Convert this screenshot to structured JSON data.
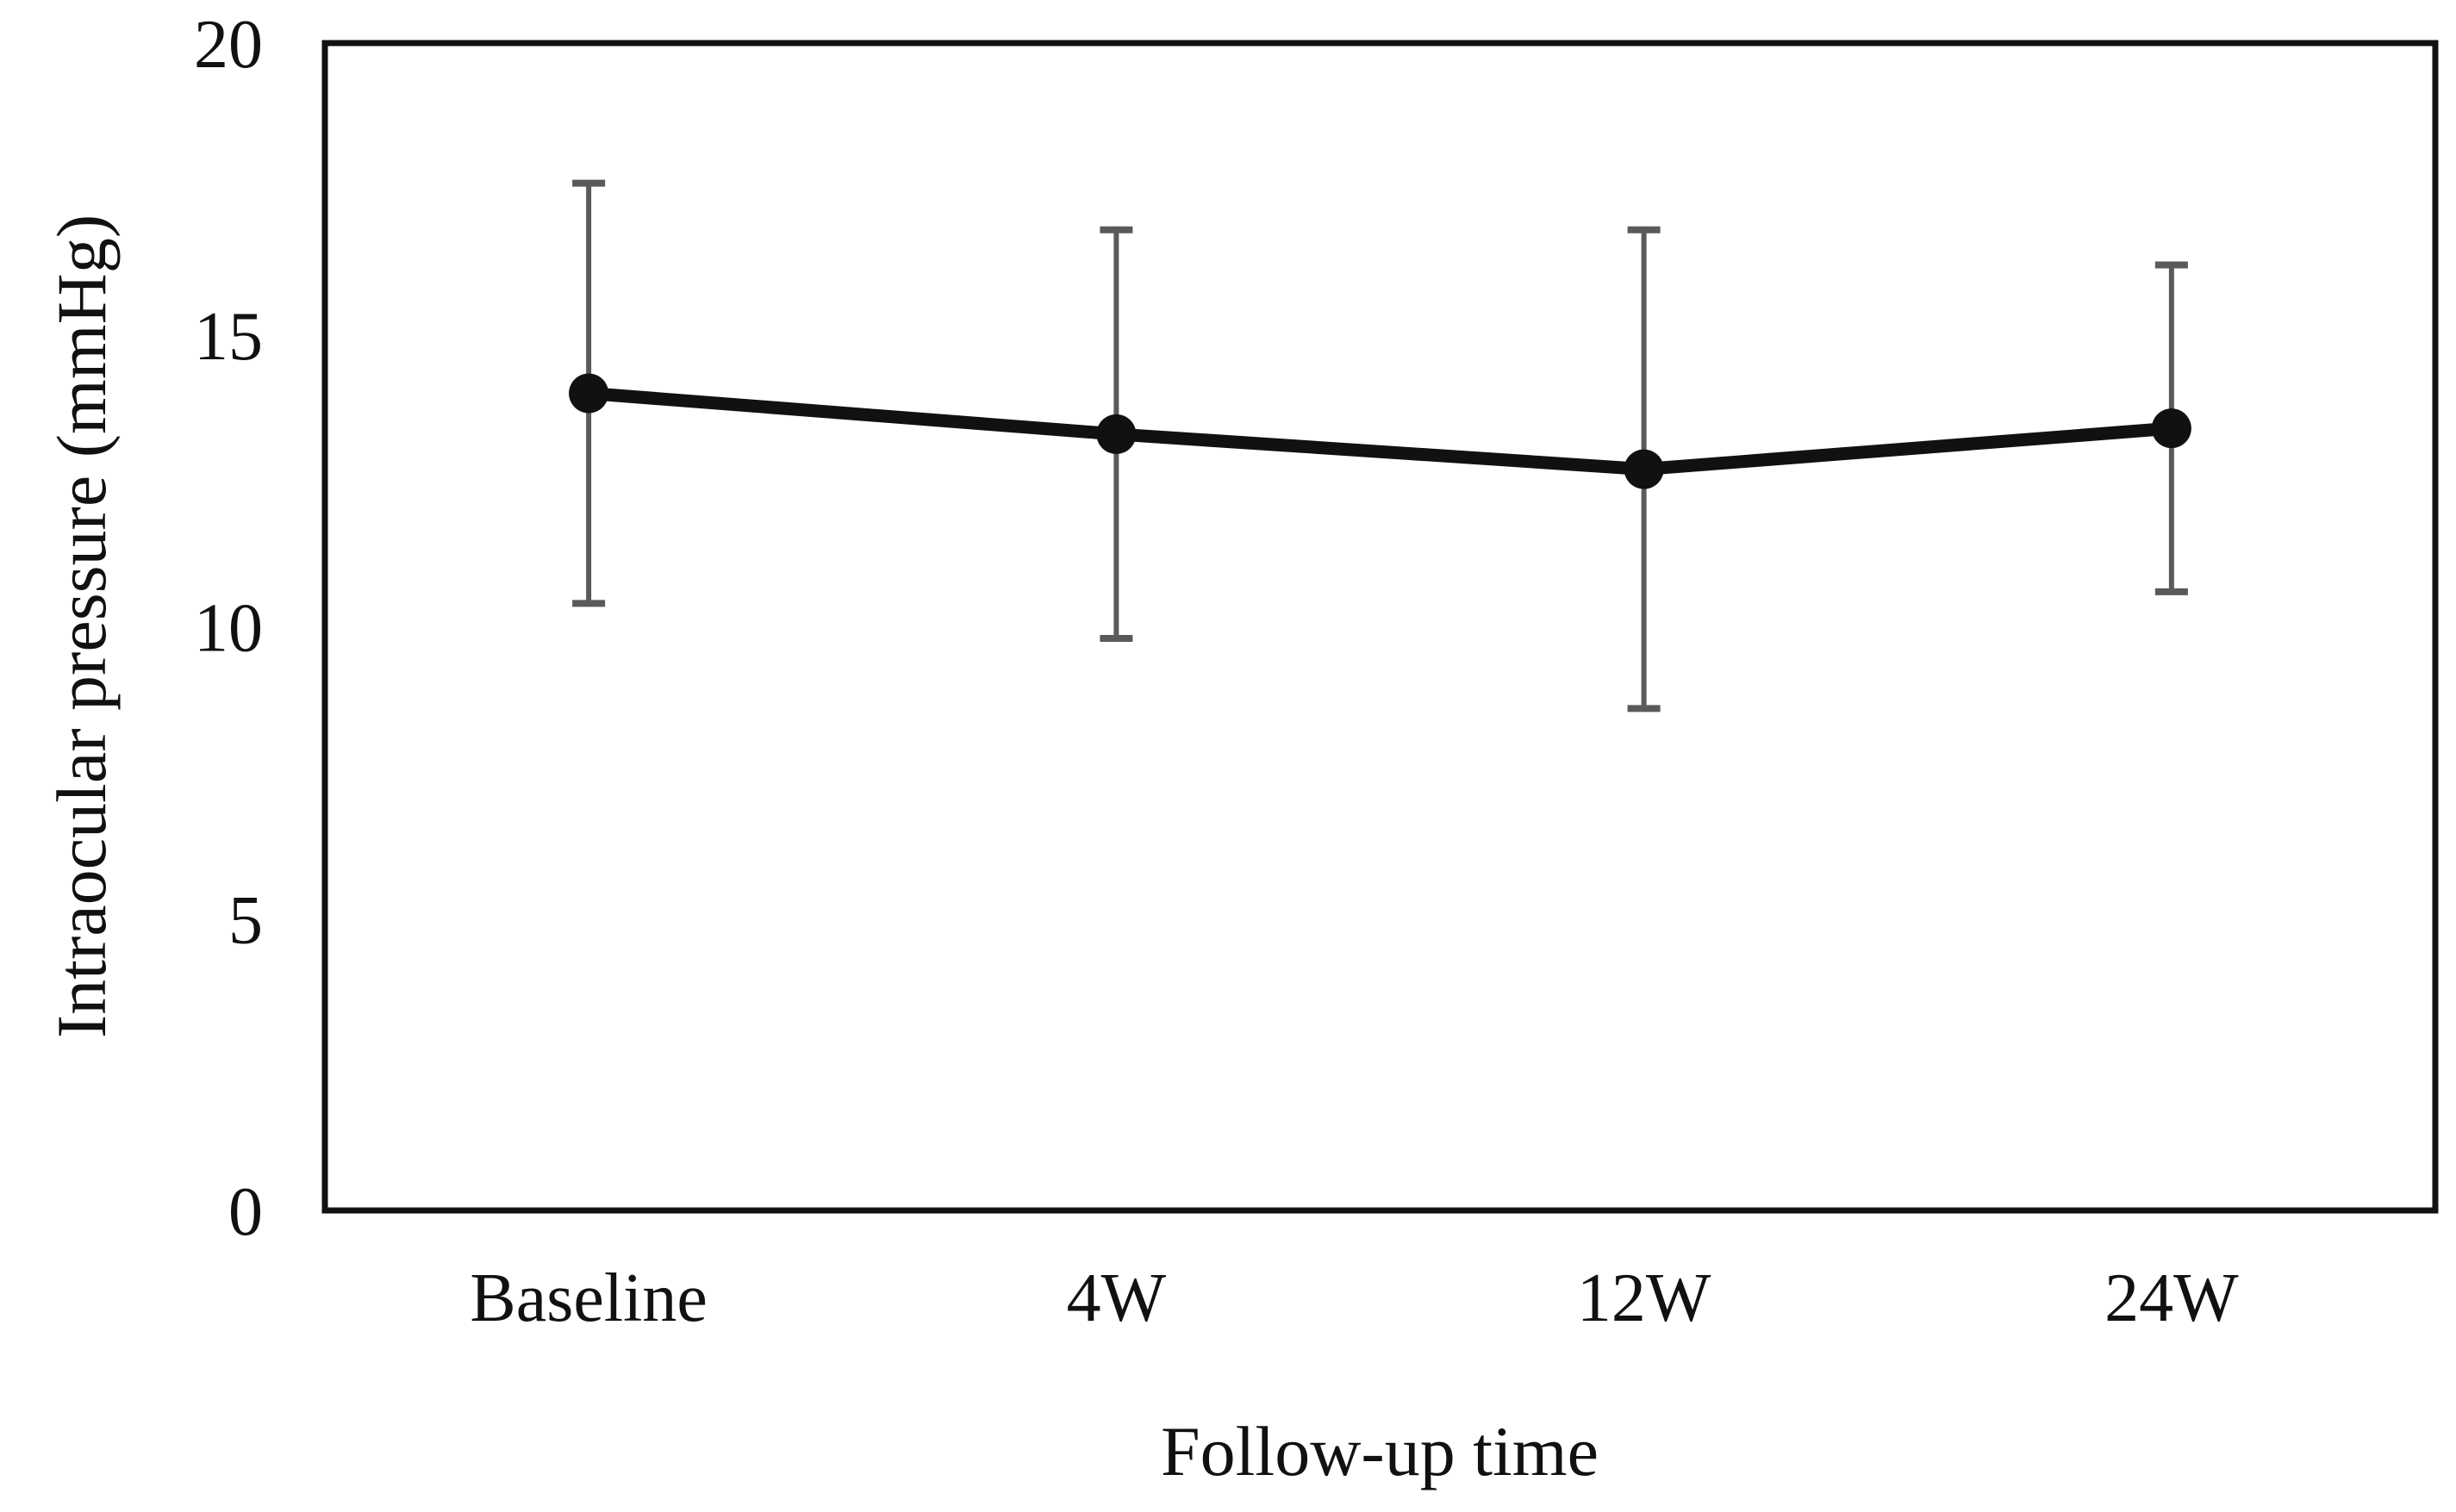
{
  "figure": {
    "x_axis_title": "Follow-up time",
    "y_axis_title": "Intraocular pressure (mmHg)"
  },
  "chart_data": {
    "type": "line",
    "title": "",
    "xlabel": "Follow-up time",
    "ylabel": "Intraocular pressure (mmHg)",
    "categories": [
      "Baseline",
      "4W",
      "12W",
      "24W"
    ],
    "series": [
      {
        "name": "Intraocular pressure (mmHg)",
        "values": [
          14.0,
          13.3,
          12.7,
          13.4
        ],
        "error_upper": [
          17.6,
          16.8,
          16.8,
          16.2
        ],
        "error_lower": [
          10.4,
          9.8,
          8.6,
          10.6
        ]
      }
    ],
    "ylim": [
      0,
      20
    ],
    "yticks": [
      0,
      5,
      10,
      15,
      20
    ],
    "grid": false,
    "legend": false,
    "marker": "circle",
    "layout_hints": {
      "frame": "closed-box",
      "error_bar_caps": true,
      "legend_position": "none"
    },
    "colors": {
      "line": "#111111",
      "marker": "#111111",
      "error_bar": "#5a5a5a",
      "frame": "#111111",
      "text": "#111111",
      "background": "#ffffff"
    }
  }
}
